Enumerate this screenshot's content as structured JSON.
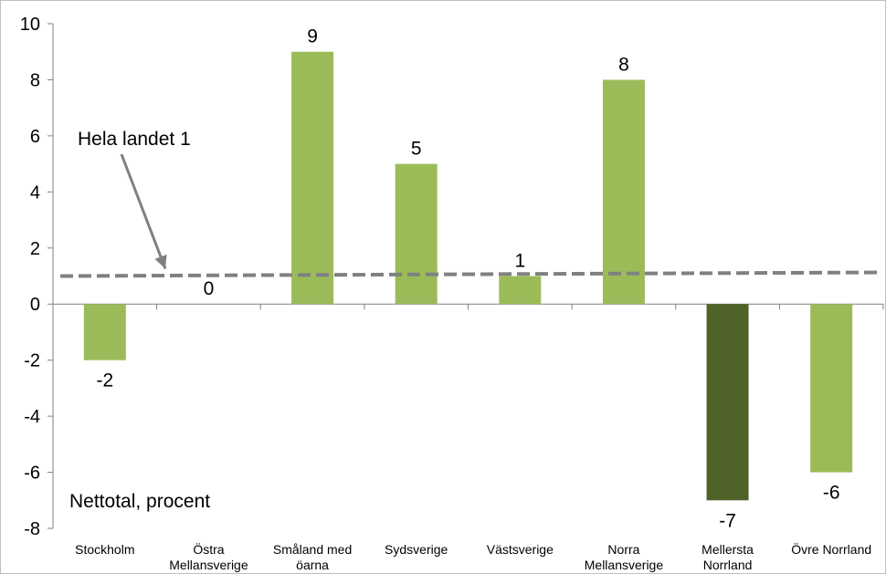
{
  "chart_data": {
    "type": "bar",
    "categories": [
      [
        "Stockholm"
      ],
      [
        "Östra",
        "Mellansverige"
      ],
      [
        "Småland med",
        "öarna"
      ],
      [
        "Sydsverige"
      ],
      [
        "Västsverige"
      ],
      [
        "Norra",
        "Mellansverige"
      ],
      [
        "Mellersta",
        "Norrland"
      ],
      [
        "Övre Norrland"
      ]
    ],
    "values": [
      -2,
      0,
      9,
      5,
      1,
      8,
      -7,
      -6
    ],
    "data_labels": [
      "-2",
      "0",
      "9",
      "5",
      "1",
      "8",
      "-7",
      "-6"
    ],
    "highlight_index": 6,
    "ylim": [
      -8,
      10
    ],
    "yticks": [
      -8,
      -6,
      -4,
      -2,
      0,
      2,
      4,
      6,
      8,
      10
    ],
    "grid": false,
    "reference_line": {
      "value": 1,
      "label": "Hela landet 1",
      "style": "dashed"
    },
    "annotation": "Nettotal, procent",
    "colors": {
      "bar": "#9bbb59",
      "bar_highlight": "#4f6228",
      "reference_line": "#808080",
      "arrow": "#808080",
      "axis": "#808080"
    }
  }
}
